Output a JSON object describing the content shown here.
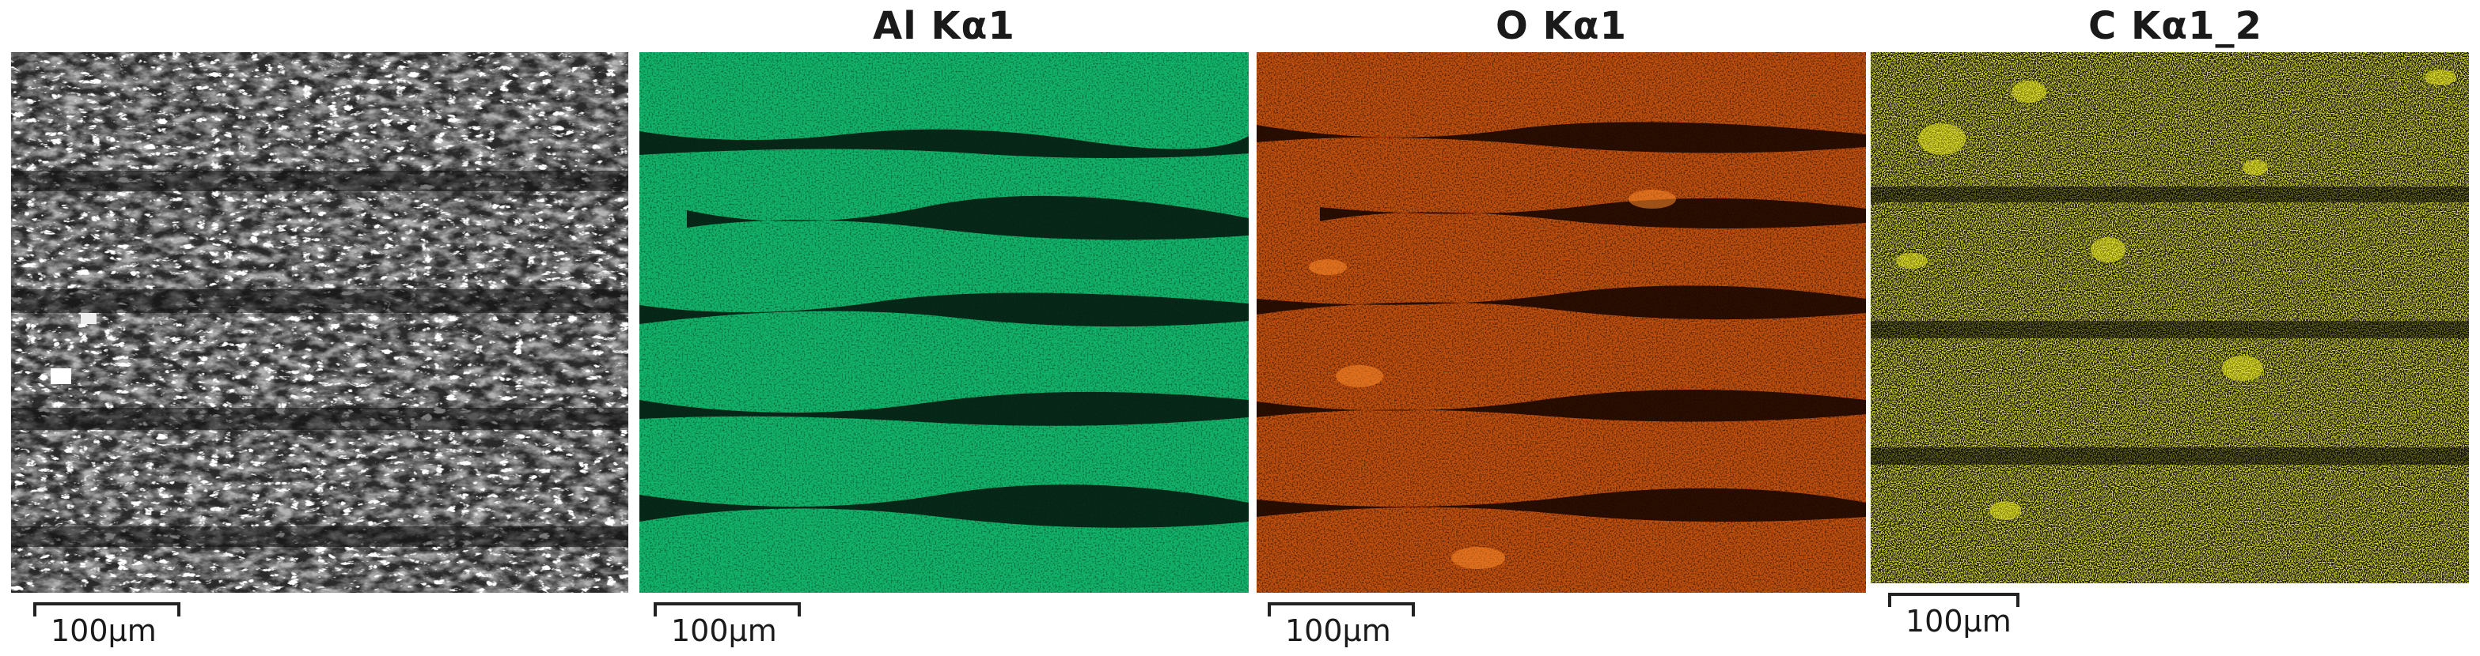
{
  "panels": [
    {
      "id": "sem",
      "title": "",
      "image": "sem-micrograph",
      "scale_label": "100μm"
    },
    {
      "id": "al",
      "title": "Al Kα1",
      "image": "eds-map",
      "color": "#10b36a",
      "scale_label": "100μm"
    },
    {
      "id": "o",
      "title": "O Kα1",
      "image": "eds-map",
      "color": "#c8520f",
      "scale_label": "100μm"
    },
    {
      "id": "c",
      "title": "C Kα1_2",
      "image": "eds-map",
      "color": "#b8b810",
      "scale_label": "100μm"
    }
  ]
}
